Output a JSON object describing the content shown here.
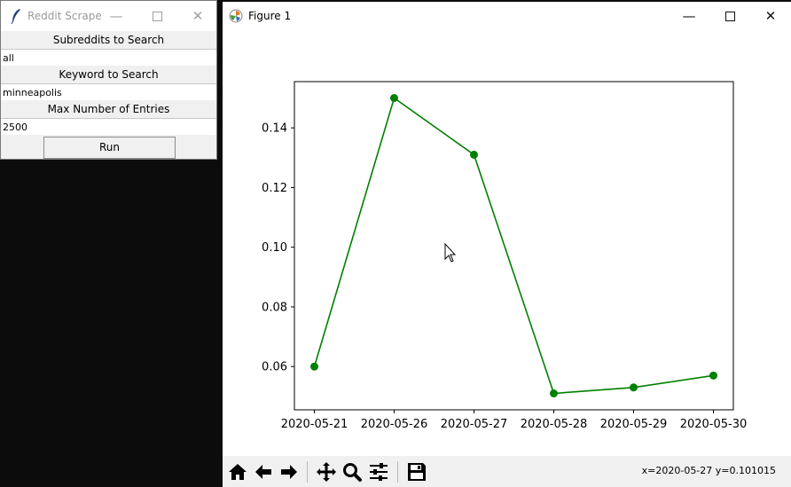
{
  "scrape_window": {
    "title": "Reddit Scrape",
    "subreddits_label": "Subreddits to Search",
    "subreddits_value": "all",
    "keyword_label": "Keyword to Search",
    "keyword_value": "minneapolis",
    "max_entries_label": "Max Number of Entries",
    "max_entries_value": "2500",
    "run_label": "Run"
  },
  "figure_window": {
    "title": "Figure 1",
    "status": "x=2020-05-27 y=0.101015",
    "toolbar_icons": [
      "home-icon",
      "back-arrow-icon",
      "forward-arrow-icon",
      "pan-icon",
      "zoom-icon",
      "configure-subplots-icon",
      "save-icon"
    ]
  },
  "chart_data": {
    "type": "line",
    "categories": [
      "2020-05-21",
      "2020-05-26",
      "2020-05-27",
      "2020-05-28",
      "2020-05-29",
      "2020-05-30"
    ],
    "values": [
      0.06,
      0.15,
      0.131,
      0.051,
      0.053,
      0.057
    ],
    "yticks": [
      "0.06",
      "0.08",
      "0.10",
      "0.12",
      "0.14"
    ],
    "ylim": [
      0.0455,
      0.1555
    ],
    "color": "#008000",
    "grid": false
  }
}
